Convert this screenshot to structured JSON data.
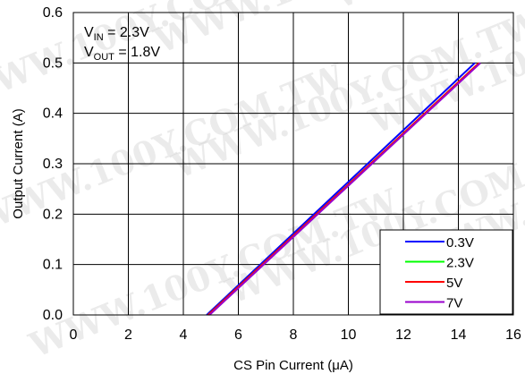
{
  "chart_data": {
    "type": "line",
    "xlabel": "CS Pin Current (μA)",
    "ylabel": "Output Current (A)",
    "xlim": [
      0,
      16
    ],
    "ylim": [
      0,
      0.6
    ],
    "xticks": [
      0,
      2,
      4,
      6,
      8,
      10,
      12,
      14,
      16
    ],
    "yticks": [
      0.0,
      0.1,
      0.2,
      0.3,
      0.4,
      0.5,
      0.6
    ],
    "xtick_labels": [
      "0",
      "2",
      "4",
      "6",
      "8",
      "10",
      "12",
      "14",
      "16"
    ],
    "ytick_labels": [
      "0.0",
      "0.1",
      "0.2",
      "0.3",
      "0.4",
      "0.5",
      "0.6"
    ],
    "grid": true,
    "legend_position": "bottom-right",
    "annotations": {
      "vin": {
        "main": "V",
        "sub": "IN",
        "rest": " = 2.3V"
      },
      "vout": {
        "main": "V",
        "sub": "OUT",
        "rest": " = 1.8V"
      }
    },
    "watermark": "WWW.100Y.COM.TW",
    "series": [
      {
        "name": "0.3V",
        "color": "#0000ff",
        "x": [
          4.85,
          14.6
        ],
        "y": [
          0.0,
          0.5
        ]
      },
      {
        "name": "2.3V",
        "color": "#00ff00",
        "x": [
          4.9,
          14.75
        ],
        "y": [
          0.0,
          0.5
        ]
      },
      {
        "name": "5V",
        "color": "#ff0000",
        "x": [
          4.9,
          14.75
        ],
        "y": [
          0.0,
          0.5
        ]
      },
      {
        "name": "7V",
        "color": "#9900cc",
        "x": [
          4.95,
          14.8
        ],
        "y": [
          0.0,
          0.5
        ]
      }
    ]
  }
}
